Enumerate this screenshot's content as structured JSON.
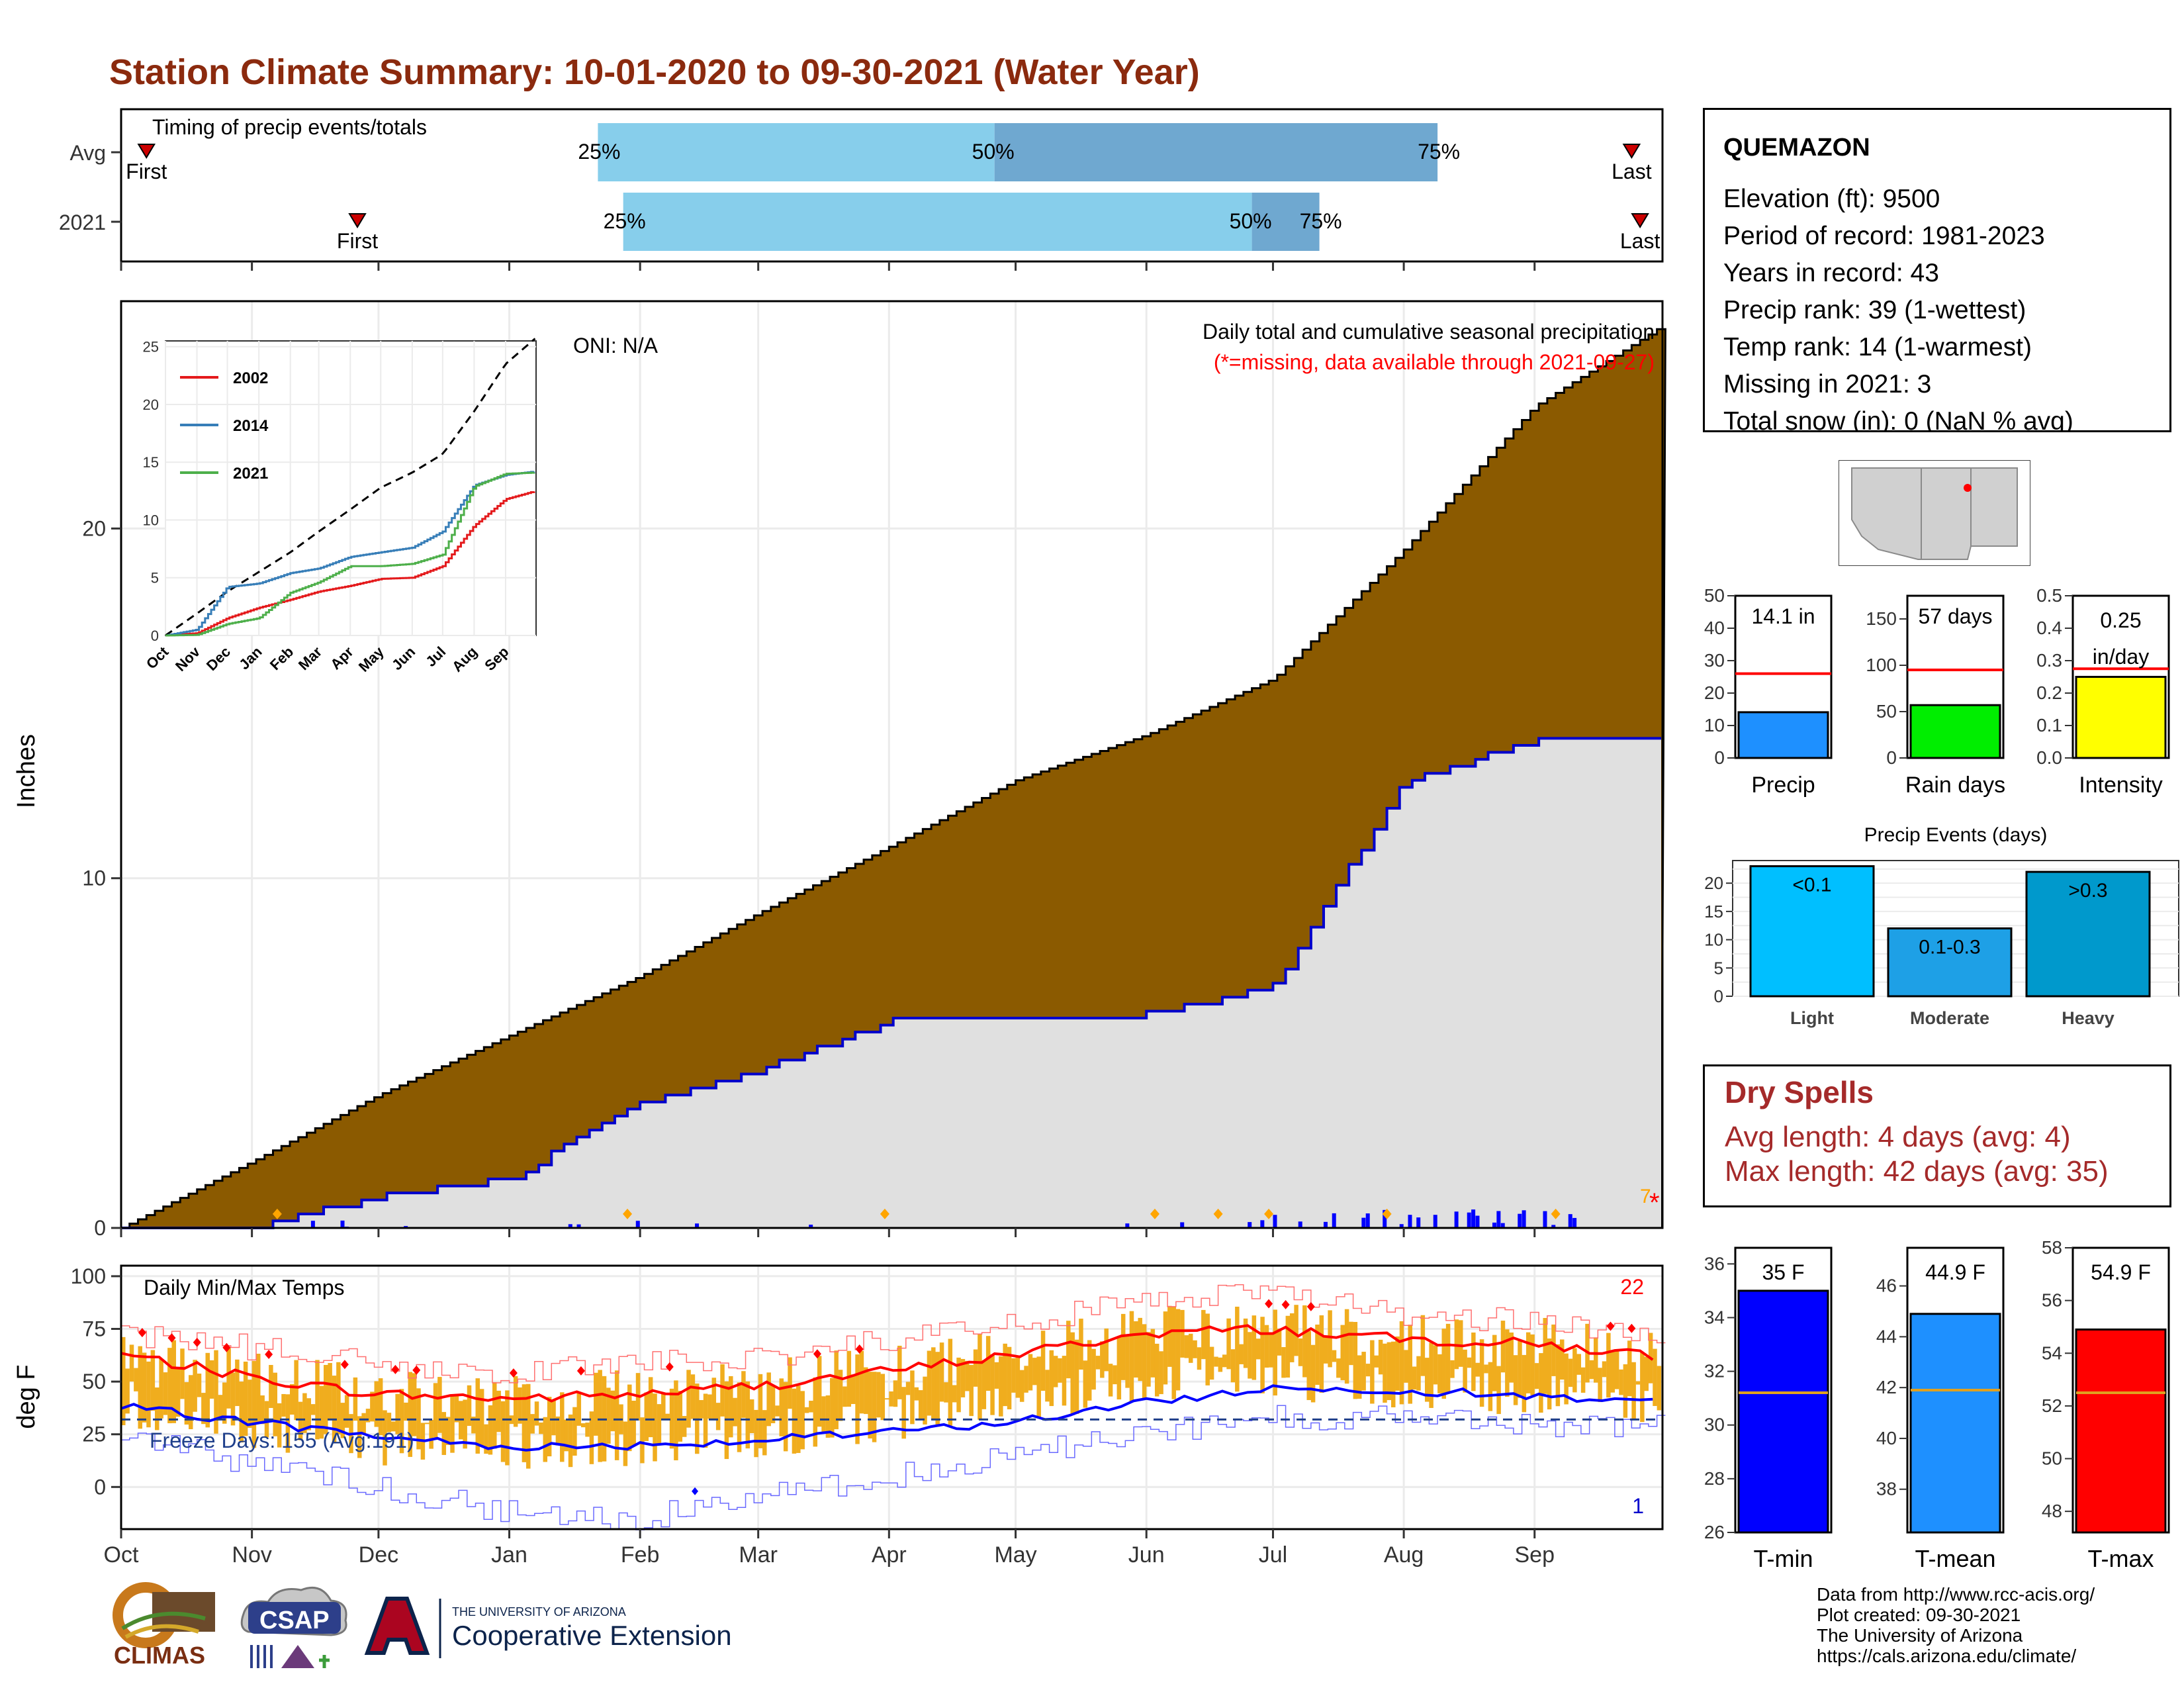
{
  "title": "Station Climate Summary: 10-01-2020 to 09-30-2021 (Water Year)",
  "timing": {
    "label": "Timing of precip events/totals",
    "rows": [
      {
        "name": "Avg",
        "p25": "25%",
        "p50": "50%",
        "p75": "75%",
        "first": "First",
        "last": "Last"
      },
      {
        "name": "2021",
        "p25": "25%",
        "p50": "50%",
        "p75": "75%",
        "first": "First",
        "last": "Last"
      }
    ]
  },
  "precip": {
    "ylabel": "Inches",
    "oni": "ONI: N/A",
    "legend_title": "Daily total and cumulative seasonal precipitation",
    "missing_note": "(*=missing, data available through 2021-09-27)",
    "missing_count": "7",
    "missing_marker": "*",
    "inset": {
      "series": [
        "2002",
        "2014",
        "2021"
      ],
      "months": [
        "Oct",
        "Nov",
        "Dec",
        "Jan",
        "Feb",
        "Mar",
        "Apr",
        "May",
        "Jun",
        "Jul",
        "Aug",
        "Sep"
      ]
    }
  },
  "temps": {
    "label": "Daily Min/Max Temps",
    "ylabel": "deg F",
    "freeze": "Freeze Days: 155 (Avg:191)",
    "max_count": "22",
    "min_count": "1"
  },
  "months": [
    "Oct",
    "Nov",
    "Dec",
    "Jan",
    "Feb",
    "Mar",
    "Apr",
    "May",
    "Jun",
    "Jul",
    "Aug",
    "Sep"
  ],
  "station": {
    "name": "QUEMAZON",
    "lines": [
      "Elevation (ft): 9500",
      "Period of record: 1981-2023",
      "Years in record: 43",
      "Precip rank: 39 (1-wettest)",
      "Temp rank: 14 (1-warmest)",
      "Missing in 2021: 3",
      "Total snow (in): 0 (NaN % avg)"
    ]
  },
  "mini_bars": [
    {
      "label": "Precip",
      "value_text": "14.1 in",
      "value": 14.1,
      "avg": 26,
      "ymax": 50,
      "color": "#1e90ff",
      "ticks": [
        "0",
        "10",
        "20",
        "30",
        "40",
        "50"
      ]
    },
    {
      "label": "Rain days",
      "value_text": "57 days",
      "value": 57,
      "avg": 95,
      "ymax": 175,
      "color": "#00ee00",
      "ticks": [
        "0",
        "50",
        "100",
        "150"
      ]
    },
    {
      "label": "Intensity",
      "value_text": "0.25 in/day",
      "value_text_line1": "0.25",
      "value_text_line2": "in/day",
      "value": 0.25,
      "avg": 0.275,
      "ymax": 0.5,
      "color": "#ffff00",
      "ticks": [
        "0.0",
        "0.1",
        "0.2",
        "0.3",
        "0.4",
        "0.5"
      ]
    }
  ],
  "events": {
    "title": "Precip Events (days)",
    "bars": [
      {
        "name": "Light",
        "label": "<0.1",
        "value": 23,
        "color": "#00bfff"
      },
      {
        "name": "Moderate",
        "label": "0.1-0.3",
        "value": 12,
        "color": "#1ea0e6"
      },
      {
        "name": "Heavy",
        "label": ">0.3",
        "value": 22,
        "color": "#0099cc"
      }
    ],
    "ticks": [
      "0",
      "5",
      "10",
      "15",
      "20"
    ]
  },
  "dry_spells": {
    "title": "Dry Spells",
    "avg": "Avg length: 4 days (avg: 4)",
    "max": "Max length: 42 days (avg: 35)"
  },
  "temp_bars": [
    {
      "label": "T-min",
      "value_text": "35 F",
      "value": 35,
      "avg": 31.2,
      "ymin": 26,
      "ymax": 36.6,
      "color": "#0000ff",
      "ticks": [
        "26",
        "28",
        "30",
        "32",
        "34",
        "36"
      ]
    },
    {
      "label": "T-mean",
      "value_text": "44.9 F",
      "value": 44.9,
      "avg": 41.9,
      "ymin": 36.3,
      "ymax": 47.5,
      "color": "#1e90ff",
      "ticks": [
        "38",
        "40",
        "42",
        "44",
        "46"
      ]
    },
    {
      "label": "T-max",
      "value_text": "54.9 F",
      "value": 54.9,
      "avg": 52.5,
      "ymin": 47.2,
      "ymax": 58,
      "color": "#ff0000",
      "ticks": [
        "48",
        "50",
        "52",
        "54",
        "56",
        "58"
      ]
    }
  ],
  "logos": {
    "climas": "CLIMAS",
    "csap": "CSAP",
    "ua_top": "THE UNIVERSITY OF ARIZONA",
    "ua_main": "Cooperative Extension"
  },
  "credits": [
    "Data from http://www.rcc-acis.org/",
    "Plot created: 09-30-2021",
    "The University of Arizona",
    "https://cals.arizona.edu/climate/"
  ],
  "chart_data": [
    {
      "type": "bar",
      "title": "Timing of precip events/totals",
      "categories": [
        "Avg",
        "2021"
      ],
      "series": [
        {
          "name": "25%",
          "values": [
            "Jan 22",
            "Jan 28"
          ]
        },
        {
          "name": "50%",
          "values": [
            "Apr 26",
            "Jun 26"
          ]
        },
        {
          "name": "75%",
          "values": [
            "Aug 9",
            "Jul 12"
          ]
        }
      ],
      "first": [
        "Oct 7",
        "Nov 26"
      ],
      "last": [
        "Sep 24",
        "Sep 26"
      ]
    },
    {
      "type": "area",
      "title": "Daily total and cumulative seasonal precipitation",
      "ylabel": "Inches",
      "ylim": [
        0,
        26.5
      ],
      "x": [
        "Oct 1",
        "Nov 1",
        "Dec 1",
        "Jan 1",
        "Feb 1",
        "Mar 1",
        "Apr 1",
        "May 1",
        "Jun 1",
        "Jul 1",
        "Aug 1",
        "Sep 1",
        "Sep 30"
      ],
      "series": [
        {
          "name": "Average cumulative",
          "values": [
            0,
            1.9,
            3.8,
            5.5,
            7.2,
            9.0,
            10.9,
            12.8,
            14.1,
            15.7,
            19.4,
            23.5,
            25.7
          ]
        },
        {
          "name": "2021 cumulative",
          "values": [
            0,
            0.1,
            1.0,
            1.5,
            3.7,
            4.6,
            6.0,
            6.0,
            6.2,
            7.0,
            12.9,
            14.0,
            14.1
          ]
        }
      ]
    },
    {
      "type": "line",
      "title": "Daily Min/Max Temps",
      "ylabel": "deg F",
      "ylim": [
        -20,
        105
      ],
      "x": [
        "Oct",
        "Nov",
        "Dec",
        "Jan",
        "Feb",
        "Mar",
        "Apr",
        "May",
        "Jun",
        "Jul",
        "Aug",
        "Sep",
        "Sep 30"
      ],
      "series": [
        {
          "name": "Avg max",
          "values": [
            63,
            52,
            44,
            42,
            44,
            48,
            55,
            63,
            73,
            75,
            70,
            68,
            62
          ]
        },
        {
          "name": "Avg min",
          "values": [
            38,
            31,
            24,
            19,
            20,
            22,
            26,
            31,
            40,
            47,
            46,
            43,
            41
          ]
        },
        {
          "name": "Record high",
          "values": [
            72,
            66,
            58,
            55,
            58,
            62,
            70,
            78,
            88,
            92,
            82,
            78,
            73
          ]
        },
        {
          "name": "Record low",
          "values": [
            26,
            10,
            0,
            -12,
            -15,
            -5,
            5,
            15,
            25,
            33,
            33,
            28,
            28
          ]
        }
      ],
      "freeze_threshold": 32
    }
  ]
}
